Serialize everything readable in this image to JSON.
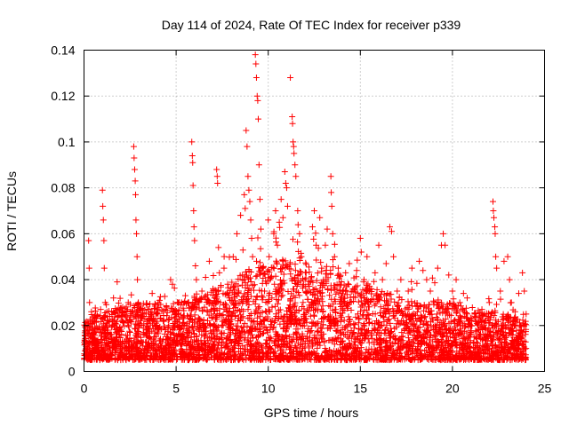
{
  "chart_data": {
    "type": "scatter",
    "title": "Day 114 of 2024, Rate Of TEC Index for receiver p339",
    "xlabel": "GPS time / hours",
    "ylabel": "ROTI / TECUs",
    "xlim": [
      0,
      25
    ],
    "ylim": [
      0,
      0.14
    ],
    "x_ticks": [
      0,
      5,
      10,
      15,
      20,
      25
    ],
    "x_tick_labels": [
      "0",
      "5",
      "10",
      "15",
      "20",
      "25"
    ],
    "y_ticks": [
      0,
      0.02,
      0.04,
      0.06,
      0.08,
      0.1,
      0.12,
      0.14
    ],
    "y_tick_labels": [
      "0",
      "0.02",
      "0.04",
      "0.06",
      "0.08",
      "0.1",
      "0.12",
      "0.14"
    ],
    "grid": true,
    "marker": "plus",
    "series_color": "#ff0000",
    "series": [
      {
        "points": [
          [
            0.05,
            0.012
          ],
          [
            0.1,
            0.02
          ],
          [
            0.15,
            0.009
          ],
          [
            0.2,
            0.018
          ],
          [
            0.25,
            0.057
          ],
          [
            0.28,
            0.045
          ],
          [
            0.3,
            0.03
          ],
          [
            0.35,
            0.015
          ],
          [
            0.4,
            0.026
          ],
          [
            0.45,
            0.01
          ],
          [
            0.5,
            0.022
          ],
          [
            0.6,
            0.014
          ],
          [
            0.7,
            0.019
          ],
          [
            0.8,
            0.011
          ],
          [
            0.9,
            0.027
          ],
          [
            1.0,
            0.079
          ],
          [
            1.02,
            0.072
          ],
          [
            1.05,
            0.066
          ],
          [
            1.08,
            0.057
          ],
          [
            1.1,
            0.045
          ],
          [
            1.15,
            0.03
          ],
          [
            1.2,
            0.02
          ],
          [
            1.3,
            0.012
          ],
          [
            1.4,
            0.024
          ],
          [
            1.5,
            0.016
          ],
          [
            1.6,
            0.032
          ],
          [
            1.7,
            0.021
          ],
          [
            1.8,
            0.039
          ],
          [
            1.9,
            0.013
          ],
          [
            2.0,
            0.018
          ],
          [
            2.1,
            0.028
          ],
          [
            2.2,
            0.011
          ],
          [
            2.3,
            0.022
          ],
          [
            2.4,
            0.03
          ],
          [
            2.5,
            0.017
          ],
          [
            2.6,
            0.026
          ],
          [
            2.7,
            0.098
          ],
          [
            2.72,
            0.093
          ],
          [
            2.75,
            0.088
          ],
          [
            2.78,
            0.083
          ],
          [
            2.8,
            0.077
          ],
          [
            2.82,
            0.066
          ],
          [
            2.85,
            0.06
          ],
          [
            2.88,
            0.05
          ],
          [
            2.9,
            0.04
          ],
          [
            2.95,
            0.03
          ],
          [
            3.0,
            0.02
          ],
          [
            3.1,
            0.013
          ],
          [
            3.2,
            0.024
          ],
          [
            3.3,
            0.016
          ],
          [
            3.4,
            0.029
          ],
          [
            3.5,
            0.012
          ],
          [
            3.6,
            0.021
          ],
          [
            3.7,
            0.034
          ],
          [
            3.8,
            0.015
          ],
          [
            3.9,
            0.025
          ],
          [
            4.0,
            0.018
          ],
          [
            4.1,
            0.031
          ],
          [
            4.2,
            0.011
          ],
          [
            4.3,
            0.022
          ],
          [
            4.4,
            0.027
          ],
          [
            4.5,
            0.014
          ],
          [
            4.6,
            0.02
          ],
          [
            4.7,
            0.04
          ],
          [
            4.8,
            0.038
          ],
          [
            4.9,
            0.016
          ],
          [
            5.0,
            0.025
          ],
          [
            5.1,
            0.012
          ],
          [
            5.2,
            0.019
          ],
          [
            5.3,
            0.03
          ],
          [
            5.4,
            0.023
          ],
          [
            5.5,
            0.033
          ],
          [
            5.6,
            0.017
          ],
          [
            5.85,
            0.1
          ],
          [
            5.88,
            0.094
          ],
          [
            5.9,
            0.091
          ],
          [
            5.92,
            0.081
          ],
          [
            5.95,
            0.07
          ],
          [
            5.97,
            0.063
          ],
          [
            6.0,
            0.057
          ],
          [
            6.05,
            0.046
          ],
          [
            6.1,
            0.04
          ],
          [
            6.2,
            0.03
          ],
          [
            6.3,
            0.022
          ],
          [
            6.4,
            0.035
          ],
          [
            6.5,
            0.018
          ],
          [
            6.6,
            0.041
          ],
          [
            6.7,
            0.026
          ],
          [
            6.8,
            0.048
          ],
          [
            6.9,
            0.015
          ],
          [
            7.0,
            0.036
          ],
          [
            7.2,
            0.088
          ],
          [
            7.23,
            0.085
          ],
          [
            7.25,
            0.082
          ],
          [
            7.3,
            0.054
          ],
          [
            7.35,
            0.043
          ],
          [
            7.4,
            0.03
          ],
          [
            7.5,
            0.02
          ],
          [
            7.6,
            0.045
          ],
          [
            7.7,
            0.028
          ],
          [
            7.8,
            0.038
          ],
          [
            7.9,
            0.019
          ],
          [
            8.0,
            0.031
          ],
          [
            8.1,
            0.05
          ],
          [
            8.2,
            0.024
          ],
          [
            8.3,
            0.06
          ],
          [
            8.4,
            0.035
          ],
          [
            8.5,
            0.068
          ],
          [
            8.6,
            0.042
          ],
          [
            8.7,
            0.077
          ],
          [
            8.75,
            0.071
          ],
          [
            8.8,
            0.105
          ],
          [
            8.85,
            0.098
          ],
          [
            8.9,
            0.085
          ],
          [
            8.95,
            0.079
          ],
          [
            9.0,
            0.074
          ],
          [
            9.05,
            0.066
          ],
          [
            9.1,
            0.058
          ],
          [
            9.15,
            0.05
          ],
          [
            9.3,
            0.138
          ],
          [
            9.33,
            0.134
          ],
          [
            9.36,
            0.128
          ],
          [
            9.4,
            0.12
          ],
          [
            9.43,
            0.118
          ],
          [
            9.46,
            0.11
          ],
          [
            9.5,
            0.09
          ],
          [
            9.55,
            0.075
          ],
          [
            9.6,
            0.062
          ],
          [
            9.7,
            0.045
          ],
          [
            9.8,
            0.035
          ],
          [
            9.9,
            0.026
          ],
          [
            10.0,
            0.066
          ],
          [
            10.05,
            0.05
          ],
          [
            10.1,
            0.04
          ],
          [
            10.2,
            0.032
          ],
          [
            10.3,
            0.06
          ],
          [
            10.4,
            0.07
          ],
          [
            10.5,
            0.055
          ],
          [
            10.6,
            0.065
          ],
          [
            10.7,
            0.075
          ],
          [
            10.8,
            0.067
          ],
          [
            10.9,
            0.087
          ],
          [
            10.95,
            0.082
          ],
          [
            11.0,
            0.08
          ],
          [
            11.05,
            0.072
          ],
          [
            11.2,
            0.128
          ],
          [
            11.3,
            0.111
          ],
          [
            11.32,
            0.108
          ],
          [
            11.35,
            0.1
          ],
          [
            11.38,
            0.098
          ],
          [
            11.4,
            0.095
          ],
          [
            11.45,
            0.09
          ],
          [
            11.5,
            0.085
          ],
          [
            11.6,
            0.07
          ],
          [
            11.7,
            0.06
          ],
          [
            11.8,
            0.05
          ],
          [
            12.0,
            0.04
          ],
          [
            12.2,
            0.035
          ],
          [
            12.4,
            0.063
          ],
          [
            12.5,
            0.07
          ],
          [
            12.6,
            0.055
          ],
          [
            12.8,
            0.067
          ],
          [
            12.9,
            0.045
          ],
          [
            13.0,
            0.04
          ],
          [
            13.1,
            0.055
          ],
          [
            13.2,
            0.062
          ],
          [
            13.4,
            0.085
          ],
          [
            13.42,
            0.078
          ],
          [
            13.45,
            0.072
          ],
          [
            13.5,
            0.06
          ],
          [
            13.6,
            0.05
          ],
          [
            13.8,
            0.045
          ],
          [
            14.0,
            0.03
          ],
          [
            14.2,
            0.043
          ],
          [
            14.4,
            0.047
          ],
          [
            14.6,
            0.035
          ],
          [
            14.8,
            0.044
          ],
          [
            15.0,
            0.058
          ],
          [
            15.05,
            0.052
          ],
          [
            15.2,
            0.04
          ],
          [
            15.4,
            0.03
          ],
          [
            15.6,
            0.036
          ],
          [
            15.8,
            0.043
          ],
          [
            16.0,
            0.055
          ],
          [
            16.2,
            0.04
          ],
          [
            16.4,
            0.047
          ],
          [
            16.6,
            0.063
          ],
          [
            16.7,
            0.061
          ],
          [
            16.8,
            0.05
          ],
          [
            17.0,
            0.035
          ],
          [
            17.2,
            0.04
          ],
          [
            17.4,
            0.025
          ],
          [
            17.6,
            0.035
          ],
          [
            17.8,
            0.045
          ],
          [
            18.2,
            0.048
          ],
          [
            18.4,
            0.044
          ],
          [
            18.6,
            0.04
          ],
          [
            18.8,
            0.035
          ],
          [
            19.0,
            0.03
          ],
          [
            19.2,
            0.045
          ],
          [
            19.4,
            0.055
          ],
          [
            19.5,
            0.06
          ],
          [
            19.6,
            0.055
          ],
          [
            19.8,
            0.042
          ],
          [
            20.0,
            0.035
          ],
          [
            20.2,
            0.04
          ],
          [
            20.4,
            0.03
          ],
          [
            20.6,
            0.034
          ],
          [
            20.8,
            0.032
          ],
          [
            21.0,
            0.02
          ],
          [
            21.2,
            0.025
          ],
          [
            21.4,
            0.018
          ],
          [
            21.6,
            0.027
          ],
          [
            21.8,
            0.022
          ],
          [
            22.0,
            0.03
          ],
          [
            22.2,
            0.074
          ],
          [
            22.22,
            0.07
          ],
          [
            22.25,
            0.067
          ],
          [
            22.3,
            0.063
          ],
          [
            22.32,
            0.06
          ],
          [
            22.35,
            0.05
          ],
          [
            22.4,
            0.045
          ],
          [
            22.6,
            0.035
          ],
          [
            22.8,
            0.048
          ],
          [
            23.0,
            0.05
          ],
          [
            23.1,
            0.04
          ],
          [
            23.2,
            0.03
          ],
          [
            23.4,
            0.026
          ],
          [
            23.6,
            0.034
          ],
          [
            23.8,
            0.043
          ],
          [
            23.9,
            0.035
          ],
          [
            24.0,
            0.025
          ]
        ]
      }
    ],
    "dense_band": {
      "note": "dense cluster of points spanning the full day",
      "x_range": [
        0,
        24
      ],
      "y_min": 0.005,
      "y_max_profile": [
        [
          0,
          0.022
        ],
        [
          1,
          0.026
        ],
        [
          2,
          0.028
        ],
        [
          3,
          0.03
        ],
        [
          4,
          0.03
        ],
        [
          5,
          0.03
        ],
        [
          6,
          0.033
        ],
        [
          7,
          0.036
        ],
        [
          8,
          0.04
        ],
        [
          9,
          0.045
        ],
        [
          10,
          0.047
        ],
        [
          11,
          0.05
        ],
        [
          12,
          0.05
        ],
        [
          13,
          0.048
        ],
        [
          14,
          0.044
        ],
        [
          15,
          0.04
        ],
        [
          16,
          0.036
        ],
        [
          17,
          0.033
        ],
        [
          18,
          0.03
        ],
        [
          19,
          0.032
        ],
        [
          20,
          0.03
        ],
        [
          21,
          0.027
        ],
        [
          22,
          0.026
        ],
        [
          23,
          0.025
        ],
        [
          24,
          0.022
        ]
      ]
    }
  }
}
